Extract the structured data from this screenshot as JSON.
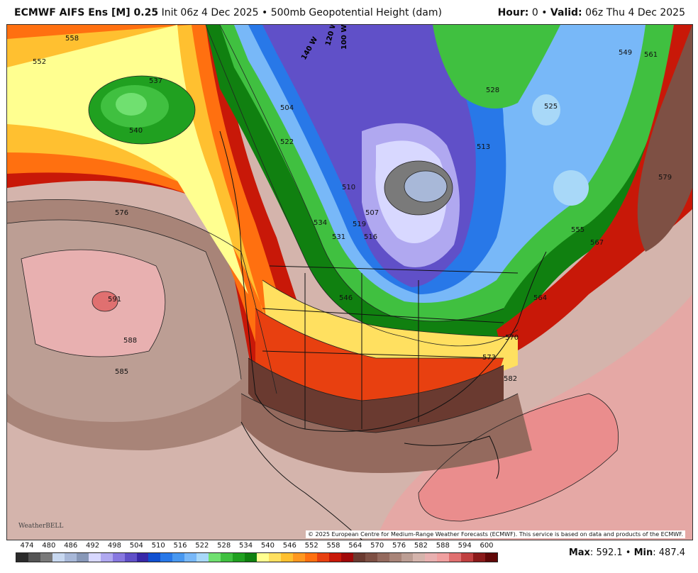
{
  "header": {
    "model": "ECMWF AIFS Ens [M] 0.25",
    "init": "Init 06z 4 Dec 2025",
    "field": "500mb Geopotential Height (dam)",
    "hour_label": "Hour:",
    "hour": "0",
    "valid_label": "Valid:",
    "valid": "06z Thu 4 Dec 2025",
    "sep": "•",
    "degree": "°"
  },
  "credit": "© 2025 European Centre for Medium-Range Weather Forecasts (ECMWF). This service is based on data and products of the ECMWF.",
  "logo": "WeatherBELL",
  "stats": {
    "max_label": "Max",
    "max": "592.1",
    "min_label": "Min",
    "min": "487.4"
  },
  "scale": {
    "labels": [
      "474",
      "480",
      "486",
      "492",
      "498",
      "504",
      "510",
      "516",
      "522",
      "528",
      "534",
      "540",
      "546",
      "552",
      "558",
      "564",
      "570",
      "576",
      "582",
      "588",
      "594",
      "600"
    ],
    "colors": [
      "#2b2b2b",
      "#555555",
      "#7a7a7a",
      "#c8d8f0",
      "#a8b8d8",
      "#8898b8",
      "#d8d8ff",
      "#b0a8f0",
      "#8878e0",
      "#6050c8",
      "#3828a8",
      "#1050d0",
      "#2878e8",
      "#4898f0",
      "#78b8f8",
      "#a8d8f8",
      "#70e070",
      "#40c040",
      "#20a020",
      "#108010",
      "#ffff90",
      "#ffe060",
      "#ffc030",
      "#ff9820",
      "#ff7010",
      "#e84010",
      "#c81808",
      "#a00808",
      "#6a3a30",
      "#7e5044",
      "#946a5e",
      "#a88478",
      "#bc9e94",
      "#d4b4ac",
      "#e8b0b0",
      "#f0a0a0",
      "#e07070",
      "#c04040",
      "#8a1a1a",
      "#600808"
    ]
  },
  "contour_labels": [
    "504",
    "507",
    "510",
    "513",
    "516",
    "519",
    "522",
    "525",
    "528",
    "531",
    "534",
    "537",
    "540",
    "546",
    "549",
    "552",
    "555",
    "558",
    "561",
    "564",
    "567",
    "570",
    "573",
    "576",
    "579",
    "582",
    "585",
    "588",
    "591"
  ],
  "longitude_labels": [
    "140 W",
    "120 W",
    "100 W"
  ],
  "icons": {
    "logo": "weatherbell-logo-icon"
  }
}
